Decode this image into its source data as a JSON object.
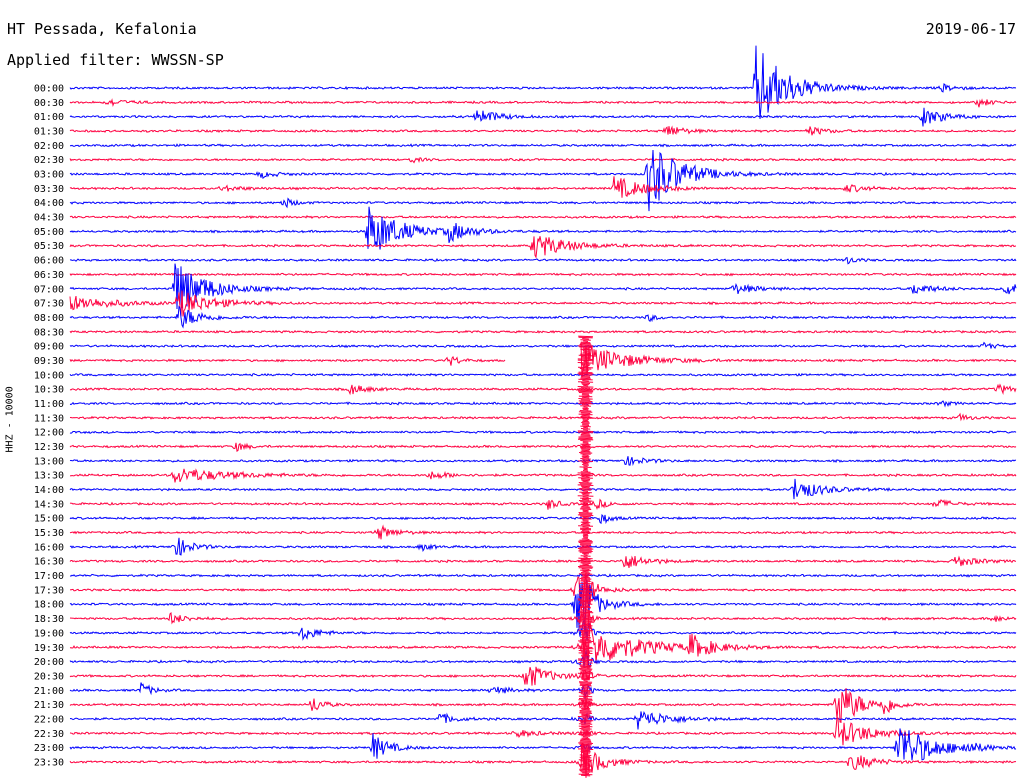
{
  "header": {
    "station": "HT Pessada, Kefalonia",
    "date": "2019-06-17",
    "filter": "Applied filter: WWSSN-SP"
  },
  "chart_data": {
    "type": "line",
    "title": "HT Pessada, Kefalonia",
    "channel_label": "HHZ - 10000",
    "filter": "WWSSN-SP",
    "trace_colors": [
      "#0000ff",
      "#ff0040"
    ],
    "rows": [
      "00:00",
      "00:30",
      "01:00",
      "01:30",
      "02:00",
      "02:30",
      "03:00",
      "03:30",
      "04:00",
      "04:30",
      "05:00",
      "05:30",
      "06:00",
      "06:30",
      "07:00",
      "07:30",
      "08:00",
      "08:30",
      "09:00",
      "09:30",
      "10:00",
      "10:30",
      "11:00",
      "11:30",
      "12:00",
      "12:30",
      "13:00",
      "13:30",
      "14:00",
      "14:30",
      "15:00",
      "15:30",
      "16:00",
      "16:30",
      "17:00",
      "17:30",
      "18:00",
      "18:30",
      "19:00",
      "19:30",
      "20:00",
      "20:30",
      "21:00",
      "21:30",
      "22:00",
      "22:30",
      "23:00",
      "23:30"
    ],
    "x_fraction_range": [
      0,
      1
    ],
    "events": [
      {
        "row": 0,
        "x": 0.725,
        "amp": 45,
        "dur": 0.03
      },
      {
        "row": 0,
        "x": 0.92,
        "amp": 4,
        "dur": 0.015
      },
      {
        "row": 1,
        "x": 0.04,
        "amp": 4,
        "dur": 0.015
      },
      {
        "row": 1,
        "x": 0.96,
        "amp": 5,
        "dur": 0.01
      },
      {
        "row": 2,
        "x": 0.43,
        "amp": 8,
        "dur": 0.02
      },
      {
        "row": 2,
        "x": 0.9,
        "amp": 10,
        "dur": 0.02
      },
      {
        "row": 3,
        "x": 0.63,
        "amp": 7,
        "dur": 0.015
      },
      {
        "row": 3,
        "x": 0.78,
        "amp": 5,
        "dur": 0.015
      },
      {
        "row": 5,
        "x": 0.36,
        "amp": 3,
        "dur": 0.01
      },
      {
        "row": 6,
        "x": 0.61,
        "amp": 40,
        "dur": 0.03
      },
      {
        "row": 6,
        "x": 0.2,
        "amp": 4,
        "dur": 0.015
      },
      {
        "row": 7,
        "x": 0.575,
        "amp": 12,
        "dur": 0.03
      },
      {
        "row": 7,
        "x": 0.16,
        "amp": 3,
        "dur": 0.02
      },
      {
        "row": 7,
        "x": 0.82,
        "amp": 4,
        "dur": 0.02
      },
      {
        "row": 8,
        "x": 0.225,
        "amp": 6,
        "dur": 0.01
      },
      {
        "row": 10,
        "x": 0.315,
        "amp": 28,
        "dur": 0.03
      },
      {
        "row": 10,
        "x": 0.4,
        "amp": 10,
        "dur": 0.02
      },
      {
        "row": 11,
        "x": 0.49,
        "amp": 14,
        "dur": 0.03
      },
      {
        "row": 12,
        "x": 0.82,
        "amp": 4,
        "dur": 0.01
      },
      {
        "row": 14,
        "x": 0.11,
        "amp": 30,
        "dur": 0.03
      },
      {
        "row": 14,
        "x": 0.7,
        "amp": 6,
        "dur": 0.02
      },
      {
        "row": 14,
        "x": 0.89,
        "amp": 6,
        "dur": 0.02
      },
      {
        "row": 14,
        "x": 0.99,
        "amp": 12,
        "dur": 0.01
      },
      {
        "row": 15,
        "x": 0.0,
        "amp": 8,
        "dur": 0.04
      },
      {
        "row": 15,
        "x": 0.115,
        "amp": 14,
        "dur": 0.03
      },
      {
        "row": 16,
        "x": 0.115,
        "amp": 12,
        "dur": 0.02
      },
      {
        "row": 16,
        "x": 0.61,
        "amp": 4,
        "dur": 0.01
      },
      {
        "row": 18,
        "x": 0.965,
        "amp": 4,
        "dur": 0.01
      },
      {
        "row": 19,
        "x": 0.4,
        "amp": 6,
        "dur": 0.01
      },
      {
        "row": 19,
        "x": 0.52,
        "amp": 30,
        "dur": 0.04
      },
      {
        "row": 21,
        "x": 0.295,
        "amp": 6,
        "dur": 0.015
      },
      {
        "row": 21,
        "x": 0.98,
        "amp": 5,
        "dur": 0.015
      },
      {
        "row": 22,
        "x": 0.92,
        "amp": 3,
        "dur": 0.01
      },
      {
        "row": 23,
        "x": 0.94,
        "amp": 4,
        "dur": 0.01
      },
      {
        "row": 25,
        "x": 0.175,
        "amp": 5,
        "dur": 0.01
      },
      {
        "row": 26,
        "x": 0.585,
        "amp": 5,
        "dur": 0.02
      },
      {
        "row": 27,
        "x": 0.11,
        "amp": 8,
        "dur": 0.05
      },
      {
        "row": 27,
        "x": 0.38,
        "amp": 4,
        "dur": 0.02
      },
      {
        "row": 28,
        "x": 0.765,
        "amp": 12,
        "dur": 0.025
      },
      {
        "row": 29,
        "x": 0.505,
        "amp": 6,
        "dur": 0.01
      },
      {
        "row": 29,
        "x": 0.555,
        "amp": 6,
        "dur": 0.01
      },
      {
        "row": 29,
        "x": 0.915,
        "amp": 5,
        "dur": 0.015
      },
      {
        "row": 30,
        "x": 0.56,
        "amp": 6,
        "dur": 0.01
      },
      {
        "row": 31,
        "x": 0.325,
        "amp": 8,
        "dur": 0.015
      },
      {
        "row": 32,
        "x": 0.11,
        "amp": 12,
        "dur": 0.015
      },
      {
        "row": 32,
        "x": 0.37,
        "amp": 4,
        "dur": 0.01
      },
      {
        "row": 33,
        "x": 0.585,
        "amp": 9,
        "dur": 0.02
      },
      {
        "row": 33,
        "x": 0.935,
        "amp": 6,
        "dur": 0.02
      },
      {
        "row": 35,
        "x": 0.535,
        "amp": 10,
        "dur": 0.02
      },
      {
        "row": 36,
        "x": 0.535,
        "amp": 24,
        "dur": 0.02
      },
      {
        "row": 37,
        "x": 0.105,
        "amp": 6,
        "dur": 0.015
      },
      {
        "row": 37,
        "x": 0.975,
        "amp": 4,
        "dur": 0.01
      },
      {
        "row": 38,
        "x": 0.245,
        "amp": 8,
        "dur": 0.015
      },
      {
        "row": 39,
        "x": 0.545,
        "amp": 22,
        "dur": 0.05
      },
      {
        "row": 39,
        "x": 0.655,
        "amp": 12,
        "dur": 0.02
      },
      {
        "row": 41,
        "x": 0.48,
        "amp": 16,
        "dur": 0.02
      },
      {
        "row": 42,
        "x": 0.075,
        "amp": 8,
        "dur": 0.01
      },
      {
        "row": 42,
        "x": 0.445,
        "amp": 5,
        "dur": 0.015
      },
      {
        "row": 43,
        "x": 0.255,
        "amp": 10,
        "dur": 0.01
      },
      {
        "row": 43,
        "x": 0.81,
        "amp": 28,
        "dur": 0.02
      },
      {
        "row": 43,
        "x": 0.86,
        "amp": 10,
        "dur": 0.01
      },
      {
        "row": 44,
        "x": 0.39,
        "amp": 6,
        "dur": 0.015
      },
      {
        "row": 44,
        "x": 0.6,
        "amp": 10,
        "dur": 0.03
      },
      {
        "row": 45,
        "x": 0.81,
        "amp": 16,
        "dur": 0.03
      },
      {
        "row": 45,
        "x": 0.47,
        "amp": 4,
        "dur": 0.02
      },
      {
        "row": 46,
        "x": 0.32,
        "amp": 14,
        "dur": 0.015
      },
      {
        "row": 46,
        "x": 0.875,
        "amp": 28,
        "dur": 0.03
      },
      {
        "row": 46,
        "x": 0.945,
        "amp": 5,
        "dur": 0.015
      },
      {
        "row": 47,
        "x": 0.54,
        "amp": 18,
        "dur": 0.02
      },
      {
        "row": 47,
        "x": 0.825,
        "amp": 10,
        "dur": 0.02
      }
    ],
    "main_event": {
      "row": 35,
      "x": 0.545,
      "amp": 260,
      "dur": 0.06
    },
    "gap": {
      "row": 19,
      "x_start": 0.46,
      "x_end": 0.54
    }
  }
}
